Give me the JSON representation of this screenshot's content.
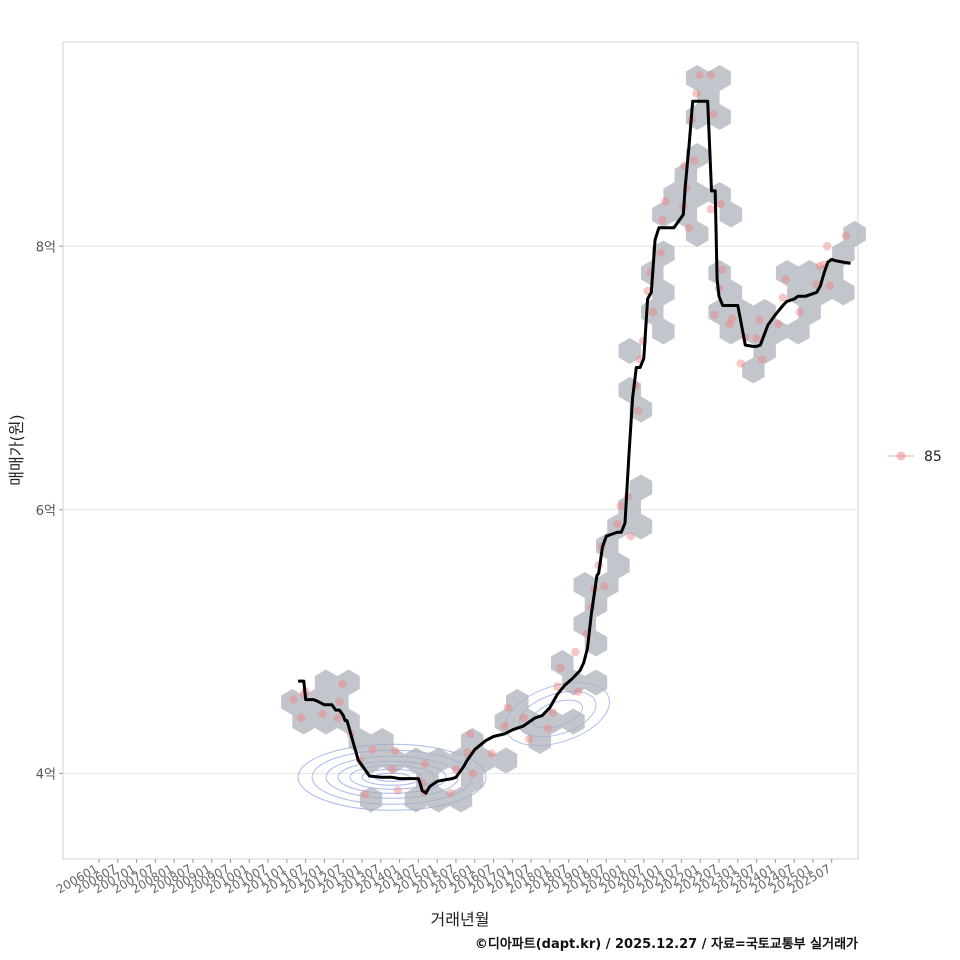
{
  "chart_data": {
    "type": "line",
    "ylabel": "매매가(원)",
    "xlabel": "거래년월",
    "caption": "©디아파트(dapt.kr) / 2025.12.27 / 자료=국토교통부 실거래가",
    "legend": {
      "label": "85",
      "placement": "right"
    },
    "x_range": [
      2006.0,
      2026.2
    ],
    "ylim": [
      3.35,
      9.55
    ],
    "y_ticks": [
      {
        "value": 4,
        "label": "4억"
      },
      {
        "value": 6,
        "label": "6억"
      },
      {
        "value": 8,
        "label": "8억"
      }
    ],
    "x_ticks": [
      {
        "value": 2006.0,
        "label": "200601"
      },
      {
        "value": 2006.5,
        "label": "200607"
      },
      {
        "value": 2007.0,
        "label": "200701"
      },
      {
        "value": 2007.5,
        "label": "200707"
      },
      {
        "value": 2008.0,
        "label": "200801"
      },
      {
        "value": 2008.5,
        "label": "200807"
      },
      {
        "value": 2009.0,
        "label": "200901"
      },
      {
        "value": 2009.5,
        "label": "200907"
      },
      {
        "value": 2010.0,
        "label": "201001"
      },
      {
        "value": 2010.5,
        "label": "201007"
      },
      {
        "value": 2011.0,
        "label": "201101"
      },
      {
        "value": 2011.5,
        "label": "201107"
      },
      {
        "value": 2012.0,
        "label": "201201"
      },
      {
        "value": 2012.5,
        "label": "201207"
      },
      {
        "value": 2013.0,
        "label": "201301"
      },
      {
        "value": 2013.5,
        "label": "201307"
      },
      {
        "value": 2014.0,
        "label": "201401"
      },
      {
        "value": 2014.5,
        "label": "201407"
      },
      {
        "value": 2015.0,
        "label": "201501"
      },
      {
        "value": 2015.5,
        "label": "201507"
      },
      {
        "value": 2016.0,
        "label": "201601"
      },
      {
        "value": 2016.5,
        "label": "201607"
      },
      {
        "value": 2017.0,
        "label": "201701"
      },
      {
        "value": 2017.5,
        "label": "201707"
      },
      {
        "value": 2018.0,
        "label": "201801"
      },
      {
        "value": 2018.5,
        "label": "201807"
      },
      {
        "value": 2019.0,
        "label": "201901"
      },
      {
        "value": 2019.5,
        "label": "201907"
      },
      {
        "value": 2020.0,
        "label": "202001"
      },
      {
        "value": 2020.5,
        "label": "202007"
      },
      {
        "value": 2021.0,
        "label": "202101"
      },
      {
        "value": 2021.5,
        "label": "202107"
      },
      {
        "value": 2022.0,
        "label": "202201"
      },
      {
        "value": 2022.5,
        "label": "202207"
      },
      {
        "value": 2023.0,
        "label": "202301"
      },
      {
        "value": 2023.5,
        "label": "202307"
      },
      {
        "value": 2024.0,
        "label": "202401"
      },
      {
        "value": 2024.5,
        "label": "202407"
      },
      {
        "value": 2025.0,
        "label": "202501"
      },
      {
        "value": 2025.5,
        "label": "202507"
      }
    ],
    "series": [
      {
        "name": "moving average",
        "color": "#000000",
        "x": [
          2011.3,
          2011.45,
          2011.5,
          2011.7,
          2011.8,
          2012.0,
          2012.2,
          2012.3,
          2012.4,
          2012.5,
          2012.55,
          2012.6,
          2012.8,
          2012.9,
          2013.2,
          2013.5,
          2013.8,
          2014.0,
          2014.5,
          2014.55,
          2014.6,
          2014.7,
          2014.8,
          2015.0,
          2015.2,
          2015.4,
          2015.5,
          2015.7,
          2015.8,
          2016.0,
          2016.3,
          2016.5,
          2016.8,
          2017.0,
          2017.3,
          2017.6,
          2017.8,
          2018.0,
          2018.2,
          2018.4,
          2018.6,
          2018.8,
          2018.9,
          2019.0,
          2019.1,
          2019.25,
          2019.3,
          2019.4,
          2019.5,
          2019.7,
          2019.8,
          2019.9,
          2020.0,
          2020.1,
          2020.2,
          2020.3,
          2020.4,
          2020.5,
          2020.6,
          2020.7,
          2020.8,
          2020.9,
          2021.0,
          2021.3,
          2021.55,
          2021.6,
          2021.7,
          2021.8,
          2021.9,
          2022.0,
          2022.2,
          2022.3,
          2022.4,
          2022.45,
          2022.5,
          2022.6,
          2022.7,
          2022.8,
          2022.9,
          2023.0,
          2023.2,
          2023.4,
          2023.5,
          2023.6,
          2023.8,
          2024.0,
          2024.2,
          2024.3,
          2024.5,
          2024.6,
          2024.8,
          2025.0,
          2025.1,
          2025.2,
          2025.3,
          2025.4,
          2025.5,
          2025.6,
          2025.8,
          2026.0
        ],
        "y": [
          4.7,
          4.7,
          4.56,
          4.56,
          4.55,
          4.52,
          4.52,
          4.48,
          4.48,
          4.44,
          4.4,
          4.4,
          4.2,
          4.1,
          3.98,
          3.97,
          3.97,
          3.96,
          3.96,
          3.92,
          3.87,
          3.85,
          3.9,
          3.94,
          3.95,
          3.96,
          3.97,
          4.05,
          4.1,
          4.18,
          4.25,
          4.28,
          4.3,
          4.33,
          4.36,
          4.42,
          4.44,
          4.5,
          4.6,
          4.67,
          4.72,
          4.78,
          4.84,
          4.95,
          5.2,
          5.5,
          5.52,
          5.72,
          5.8,
          5.82,
          5.83,
          5.83,
          5.9,
          6.4,
          6.85,
          7.08,
          7.08,
          7.15,
          7.6,
          7.65,
          8.05,
          8.14,
          8.14,
          8.14,
          8.24,
          8.45,
          8.75,
          9.1,
          9.1,
          9.1,
          9.1,
          8.42,
          8.42,
          7.75,
          7.62,
          7.55,
          7.55,
          7.55,
          7.55,
          7.55,
          7.25,
          7.24,
          7.24,
          7.25,
          7.4,
          7.48,
          7.55,
          7.58,
          7.6,
          7.62,
          7.62,
          7.64,
          7.65,
          7.7,
          7.8,
          7.88,
          7.9,
          7.89,
          7.88,
          7.87
        ]
      }
    ]
  }
}
